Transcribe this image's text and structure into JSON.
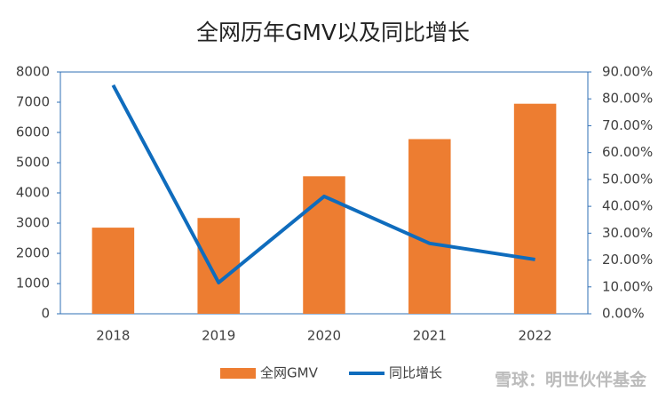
{
  "chart_data": {
    "type": "bar_line",
    "title": "全网历年GMV以及同比增长",
    "categories": [
      "2018",
      "2019",
      "2020",
      "2021",
      "2022"
    ],
    "series": [
      {
        "name": "全网GMV",
        "type": "bar",
        "color": "#ed7d31",
        "values": [
          2850,
          3170,
          4550,
          5780,
          6950
        ]
      },
      {
        "name": "同比增长",
        "type": "line",
        "color": "#0f6cbd",
        "axis": "y2",
        "values": [
          85.1,
          11.6,
          43.7,
          26.2,
          20.2
        ]
      }
    ],
    "ylim": [
      0,
      8000
    ],
    "yticks": [
      0,
      1000,
      2000,
      3000,
      4000,
      5000,
      6000,
      7000,
      8000
    ],
    "y2lim": [
      0,
      90
    ],
    "y2ticks": [
      {
        "value": 0,
        "label": "0.00%"
      },
      {
        "value": 10,
        "label": "10.00%"
      },
      {
        "value": 20,
        "label": "20.00%"
      },
      {
        "value": 30,
        "label": "30.00%"
      },
      {
        "value": 40,
        "label": "40.00%"
      },
      {
        "value": 50,
        "label": "50.00%"
      },
      {
        "value": 60,
        "label": "60.00%"
      },
      {
        "value": 70,
        "label": "70.00%"
      },
      {
        "value": 80,
        "label": "80.00%"
      },
      {
        "value": 90,
        "label": "90.00%"
      }
    ],
    "grid": false,
    "legend": "bottom",
    "watermark": "雪球：明世伙伴基金"
  }
}
